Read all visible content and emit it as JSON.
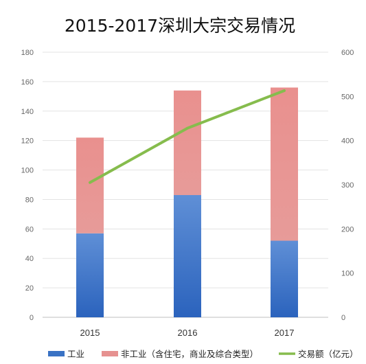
{
  "chart_data": {
    "type": "bar",
    "title": "2015-2017深圳大宗交易情况",
    "categories": [
      "2015",
      "2016",
      "2017"
    ],
    "stacked": true,
    "series": [
      {
        "name": "工业",
        "kind": "bar",
        "axis": "left",
        "values": [
          57,
          83,
          52
        ],
        "color": "#3a72c4"
      },
      {
        "name": "非工业（含住宅，商业及综合类型）",
        "kind": "bar",
        "axis": "left",
        "values": [
          65,
          71,
          104
        ],
        "color": "#e69190"
      },
      {
        "name": "交易额（亿元）",
        "kind": "line",
        "axis": "right",
        "values": [
          305,
          428,
          513
        ],
        "color": "#86bc4d"
      }
    ],
    "y_left": {
      "min": 0,
      "max": 180,
      "ticks": [
        0,
        20,
        40,
        60,
        80,
        100,
        120,
        140,
        160,
        180
      ]
    },
    "y_right": {
      "min": 0,
      "max": 600,
      "ticks": [
        0,
        100,
        200,
        300,
        400,
        500,
        600
      ]
    },
    "grid": true,
    "legend_position": "bottom"
  }
}
